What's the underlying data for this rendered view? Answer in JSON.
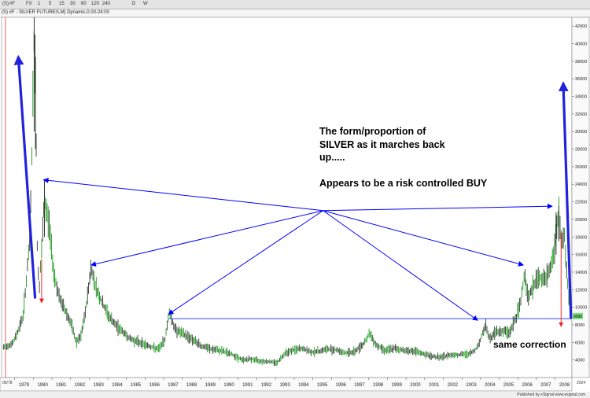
{
  "toolbar": {
    "items": [
      "(S)",
      "#F",
      "FX",
      "1",
      "5",
      "15",
      "30",
      "60",
      "120",
      "240",
      "D",
      "W"
    ]
  },
  "title_bar": {
    "text": "(S) #F - SILVER FUTURES,M) Dynamic,0.00-24:00"
  },
  "footer": {
    "text": "Published by eSignal  www.esignal.com"
  },
  "chart_data": {
    "type": "candlestick",
    "title": "#F - SILVER FUTURES,M",
    "xlabel": "",
    "ylabel": "",
    "x_ticks": [
      "1979",
      "1980",
      "1981",
      "1982",
      "1983",
      "1984",
      "1985",
      "1986",
      "1987",
      "1988",
      "1989",
      "1990",
      "1991",
      "1992",
      "1993",
      "1994",
      "1995",
      "1996",
      "1997",
      "1998",
      "1999",
      "2000",
      "2001",
      "2002",
      "2003",
      "2004",
      "2005",
      "2006",
      "2007",
      "2008"
    ],
    "y_ticks": [
      4000,
      6000,
      8000,
      10000,
      12000,
      14000,
      16000,
      18000,
      20000,
      22000,
      24000,
      26000,
      28000,
      30000,
      32000,
      34000,
      36000,
      38000,
      40000,
      42000
    ],
    "ylim": [
      2000,
      43000
    ],
    "x_range": [
      1978.3,
      2008.9
    ],
    "grid": false,
    "last_price": {
      "value": 9000,
      "label": "9090"
    },
    "series": [
      {
        "name": "",
        "points": [
          {
            "t": 1978.4,
            "v": 5400
          },
          {
            "t": 1978.9,
            "v": 5900
          },
          {
            "t": 1979.2,
            "v": 7400
          },
          {
            "t": 1979.45,
            "v": 9000
          },
          {
            "t": 1979.65,
            "v": 13500
          },
          {
            "t": 1979.82,
            "v": 18000
          },
          {
            "t": 1979.95,
            "v": 30000
          },
          {
            "t": 1980.05,
            "v": 41500
          },
          {
            "t": 1980.12,
            "v": 36000
          },
          {
            "t": 1980.22,
            "v": 16000
          },
          {
            "t": 1980.32,
            "v": 12000
          },
          {
            "t": 1980.45,
            "v": 16500
          },
          {
            "t": 1980.6,
            "v": 22000
          },
          {
            "t": 1980.85,
            "v": 19500
          },
          {
            "t": 1981.1,
            "v": 14000
          },
          {
            "t": 1981.4,
            "v": 11000
          },
          {
            "t": 1981.75,
            "v": 9500
          },
          {
            "t": 1982.05,
            "v": 8000
          },
          {
            "t": 1982.3,
            "v": 6000
          },
          {
            "t": 1982.55,
            "v": 6600
          },
          {
            "t": 1982.8,
            "v": 9500
          },
          {
            "t": 1983.1,
            "v": 14500
          },
          {
            "t": 1983.4,
            "v": 12000
          },
          {
            "t": 1983.7,
            "v": 10500
          },
          {
            "t": 1984.05,
            "v": 9000
          },
          {
            "t": 1984.4,
            "v": 8000
          },
          {
            "t": 1984.8,
            "v": 7200
          },
          {
            "t": 1985.2,
            "v": 6400
          },
          {
            "t": 1985.7,
            "v": 6000
          },
          {
            "t": 1986.2,
            "v": 5600
          },
          {
            "t": 1986.7,
            "v": 5200
          },
          {
            "t": 1987.05,
            "v": 6200
          },
          {
            "t": 1987.3,
            "v": 9500
          },
          {
            "t": 1987.6,
            "v": 7500
          },
          {
            "t": 1988.0,
            "v": 7000
          },
          {
            "t": 1988.5,
            "v": 6400
          },
          {
            "t": 1989.0,
            "v": 5600
          },
          {
            "t": 1989.6,
            "v": 5200
          },
          {
            "t": 1990.2,
            "v": 5000
          },
          {
            "t": 1990.7,
            "v": 4600
          },
          {
            "t": 1991.2,
            "v": 4000
          },
          {
            "t": 1991.7,
            "v": 4100
          },
          {
            "t": 1992.2,
            "v": 3900
          },
          {
            "t": 1992.7,
            "v": 3800
          },
          {
            "t": 1993.1,
            "v": 3700
          },
          {
            "t": 1993.5,
            "v": 4800
          },
          {
            "t": 1993.9,
            "v": 5100
          },
          {
            "t": 1994.4,
            "v": 5300
          },
          {
            "t": 1994.9,
            "v": 4900
          },
          {
            "t": 1995.3,
            "v": 5000
          },
          {
            "t": 1995.7,
            "v": 5200
          },
          {
            "t": 1996.2,
            "v": 5200
          },
          {
            "t": 1996.7,
            "v": 4800
          },
          {
            "t": 1997.2,
            "v": 4900
          },
          {
            "t": 1997.7,
            "v": 5800
          },
          {
            "t": 1998.05,
            "v": 7000
          },
          {
            "t": 1998.4,
            "v": 5700
          },
          {
            "t": 1998.9,
            "v": 5100
          },
          {
            "t": 1999.4,
            "v": 5300
          },
          {
            "t": 1999.9,
            "v": 5100
          },
          {
            "t": 2000.4,
            "v": 5000
          },
          {
            "t": 2000.9,
            "v": 4700
          },
          {
            "t": 2001.4,
            "v": 4400
          },
          {
            "t": 2001.9,
            "v": 4300
          },
          {
            "t": 2002.4,
            "v": 4600
          },
          {
            "t": 2002.9,
            "v": 4600
          },
          {
            "t": 2003.4,
            "v": 4700
          },
          {
            "t": 2003.7,
            "v": 5100
          },
          {
            "t": 2003.95,
            "v": 6000
          },
          {
            "t": 2004.25,
            "v": 8000
          },
          {
            "t": 2004.5,
            "v": 6300
          },
          {
            "t": 2004.8,
            "v": 7200
          },
          {
            "t": 2005.2,
            "v": 7300
          },
          {
            "t": 2005.55,
            "v": 7100
          },
          {
            "t": 2005.9,
            "v": 8800
          },
          {
            "t": 2006.15,
            "v": 10500
          },
          {
            "t": 2006.35,
            "v": 14000
          },
          {
            "t": 2006.55,
            "v": 11000
          },
          {
            "t": 2006.85,
            "v": 12500
          },
          {
            "t": 2007.15,
            "v": 13500
          },
          {
            "t": 2007.45,
            "v": 13000
          },
          {
            "t": 2007.75,
            "v": 14500
          },
          {
            "t": 2007.95,
            "v": 16500
          },
          {
            "t": 2008.05,
            "v": 18500
          },
          {
            "t": 2008.2,
            "v": 20500
          },
          {
            "t": 2008.35,
            "v": 17500
          },
          {
            "t": 2008.5,
            "v": 18000
          },
          {
            "t": 2008.62,
            "v": 14000
          },
          {
            "t": 2008.75,
            "v": 10500
          },
          {
            "t": 2008.85,
            "v": 9000
          }
        ]
      }
    ],
    "annotations": {
      "text_lines": [
        "The form/proportion of",
        "SILVER as it marches back",
        "up.....",
        "",
        "Appears to be a risk controlled BUY"
      ],
      "correction_label": "same correction",
      "support_level": 8700,
      "hub": {
        "t": 1995.55,
        "v": 21000
      },
      "blue_arrows_from_hub": [
        {
          "t": 1980.55,
          "v": 24500
        },
        {
          "t": 1983.1,
          "v": 14800
        },
        {
          "t": 1987.25,
          "v": 9200
        },
        {
          "t": 2003.85,
          "v": 8500
        },
        {
          "t": 2006.3,
          "v": 14800
        },
        {
          "t": 2007.85,
          "v": 21500
        }
      ],
      "thick_blue_arrows": [
        {
          "from": {
            "t": 1980.1,
            "v": 11000
          },
          "to": {
            "t": 1979.2,
            "v": 38500
          }
        },
        {
          "from": {
            "t": 2008.85,
            "v": 8700
          },
          "to": {
            "t": 2010.2,
            "v": 35500
          }
        }
      ],
      "red_arrows": [
        {
          "from": {
            "t": 1980.45,
            "v": 15500
          },
          "to": {
            "t": 1980.45,
            "v": 10500
          }
        },
        {
          "from": {
            "t": 2008.32,
            "v": 18500
          },
          "to": {
            "t": 2008.32,
            "v": 7800
          }
        }
      ]
    },
    "colors": {
      "price": "#00aa00",
      "blue_arrows": "#0000ff",
      "thick_arrows": "#2222dd",
      "red_arrows": "#ee2222",
      "last_price_tag": "#7ce07c"
    }
  }
}
